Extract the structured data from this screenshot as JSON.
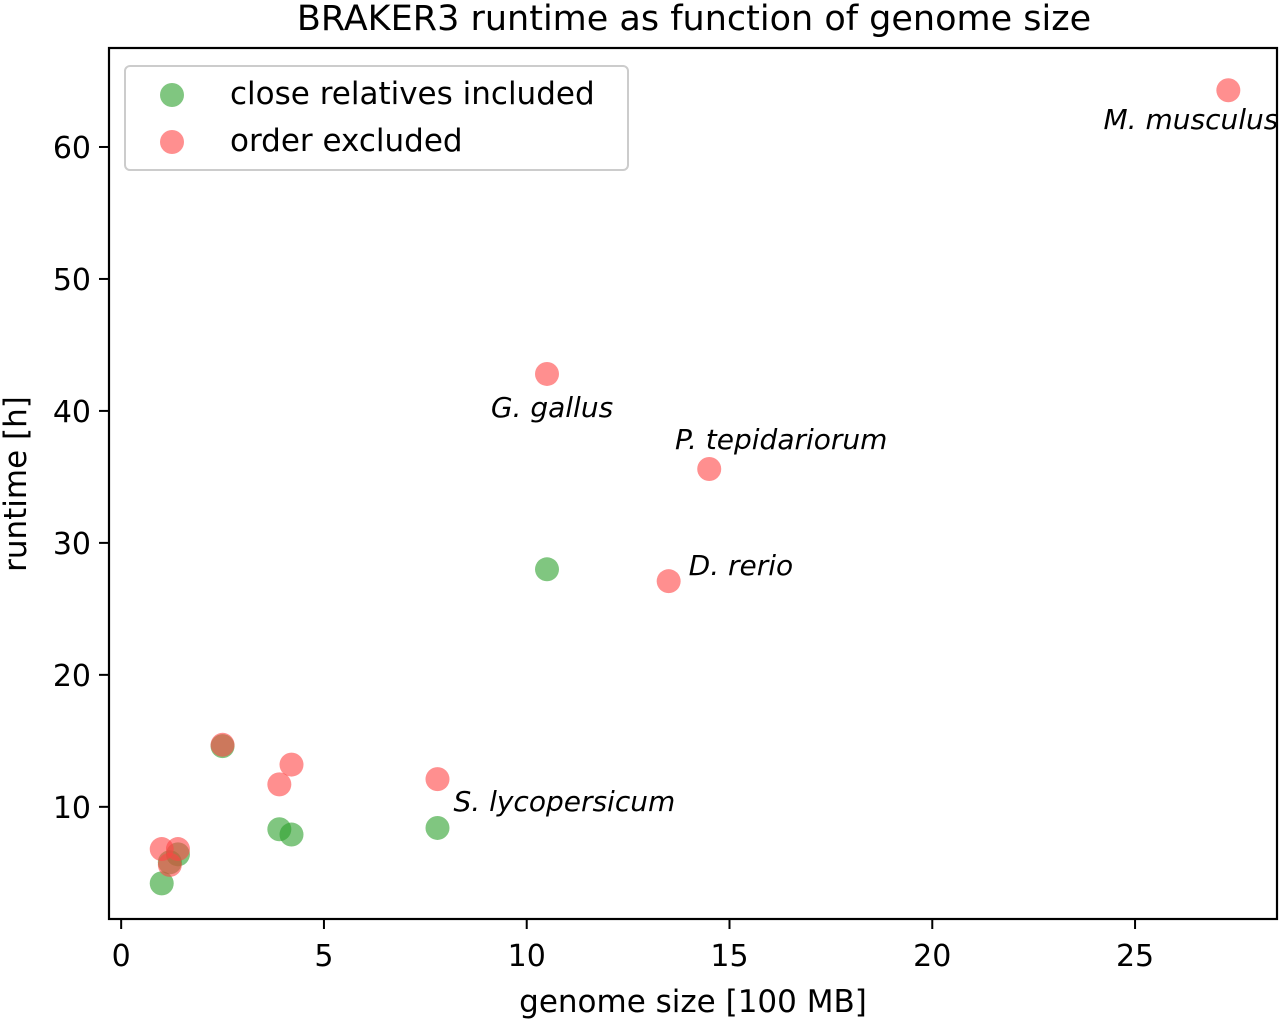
{
  "chart_data": {
    "type": "scatter",
    "title": "BRAKER3 runtime as function of genome size",
    "xlabel": "genome size [100 MB]",
    "ylabel": "runtime [h]",
    "xlim": [
      -0.3,
      28.5
    ],
    "ylim": [
      1.5,
      67.5
    ],
    "xticks": [
      0,
      5,
      10,
      15,
      20,
      25
    ],
    "yticks": [
      10,
      20,
      30,
      40,
      50,
      60
    ],
    "grid": false,
    "legend_position": "top-left",
    "series": [
      {
        "name": "close relatives included",
        "color": "#2ca02c",
        "alpha": 0.6,
        "points": [
          {
            "x": 1.0,
            "y": 4.2
          },
          {
            "x": 1.2,
            "y": 5.8
          },
          {
            "x": 1.4,
            "y": 6.4
          },
          {
            "x": 2.5,
            "y": 14.6
          },
          {
            "x": 3.9,
            "y": 8.3
          },
          {
            "x": 4.2,
            "y": 7.9
          },
          {
            "x": 7.8,
            "y": 8.4
          },
          {
            "x": 10.5,
            "y": 28.0
          }
        ]
      },
      {
        "name": "order excluded",
        "color": "#ff4444",
        "alpha": 0.6,
        "points": [
          {
            "x": 1.0,
            "y": 6.8
          },
          {
            "x": 1.2,
            "y": 5.6
          },
          {
            "x": 1.4,
            "y": 6.8
          },
          {
            "x": 2.5,
            "y": 14.7
          },
          {
            "x": 3.9,
            "y": 11.7
          },
          {
            "x": 4.2,
            "y": 13.2
          },
          {
            "x": 7.8,
            "y": 12.1
          },
          {
            "x": 10.5,
            "y": 42.8
          },
          {
            "x": 13.5,
            "y": 27.1
          },
          {
            "x": 14.5,
            "y": 35.6
          },
          {
            "x": 27.3,
            "y": 64.3
          }
        ]
      }
    ],
    "annotations": [
      {
        "text": "M. musculus",
        "x": 27.3,
        "y": 64.3,
        "anchor": "end-below"
      },
      {
        "text": "G. gallus",
        "x": 10.5,
        "y": 42.8,
        "anchor": "below"
      },
      {
        "text": "P. tepidariorum",
        "x": 14.5,
        "y": 35.6,
        "anchor": "above"
      },
      {
        "text": "D. rerio",
        "x": 13.5,
        "y": 27.1,
        "anchor": "right"
      },
      {
        "text": "S. lycopersicum",
        "x": 7.8,
        "y": 12.1,
        "anchor": "right-below"
      }
    ]
  }
}
